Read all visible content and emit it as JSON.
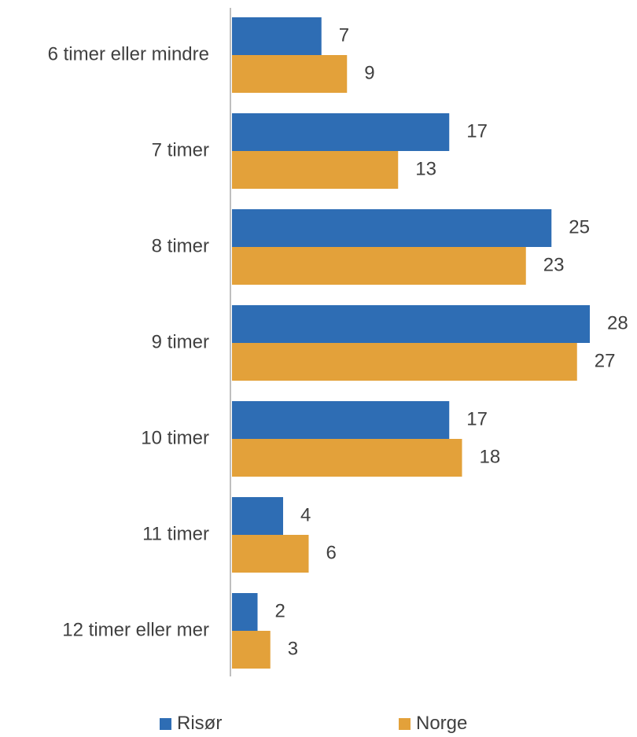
{
  "chart_data": {
    "type": "bar",
    "orientation": "horizontal",
    "categories": [
      "6 timer eller mindre",
      "7 timer",
      "8 timer",
      "9 timer",
      "10 timer",
      "11 timer",
      "12 timer eller mer"
    ],
    "series": [
      {
        "name": "Risør",
        "values": [
          7,
          17,
          25,
          28,
          17,
          4,
          2
        ],
        "color": "#2E6DB4"
      },
      {
        "name": "Norge",
        "values": [
          9,
          13,
          23,
          27,
          18,
          6,
          3
        ],
        "color": "#E3A13A"
      }
    ],
    "title": "",
    "xlabel": "",
    "ylabel": "",
    "xlim": [
      0,
      28
    ],
    "grid": false,
    "data_labels": true,
    "legend_position": "bottom",
    "axis_color": "#BFBFBF",
    "text_color": "#404040"
  }
}
